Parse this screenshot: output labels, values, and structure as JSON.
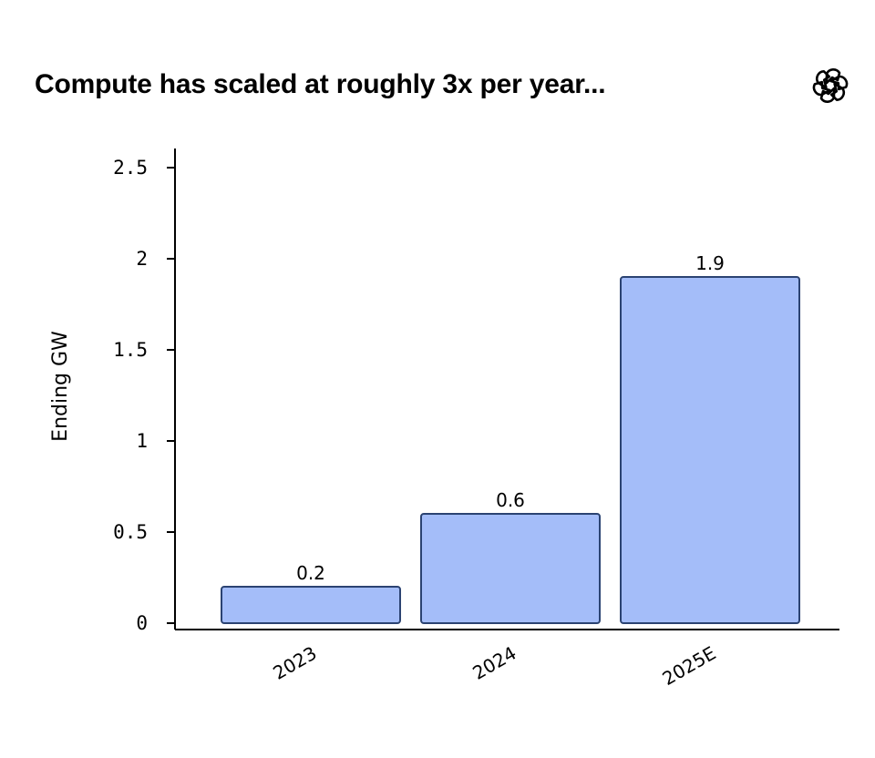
{
  "header": {
    "title": "Compute has scaled at roughly 3x per year...",
    "logo_icon": "openai-logo-icon"
  },
  "colors": {
    "bar_fill": "#a4bdf9",
    "bar_stroke": "#2b4372",
    "axis": "#000000"
  },
  "chart_data": {
    "type": "bar",
    "title": "Compute has scaled at roughly 3x per year...",
    "xlabel": "",
    "ylabel": "Ending GW",
    "categories": [
      "2023",
      "2024",
      "2025E"
    ],
    "values": [
      0.2,
      0.6,
      1.9
    ],
    "data_labels": [
      "0.2",
      "0.6",
      "1.9"
    ],
    "ylim": [
      0,
      2.5
    ],
    "yticks": [
      0,
      0.5,
      1,
      1.5,
      2,
      2.5
    ],
    "ytick_labels": [
      "0",
      "0.5",
      "1",
      "1.5",
      "2",
      "2.5"
    ],
    "grid": false,
    "legend": "none"
  }
}
